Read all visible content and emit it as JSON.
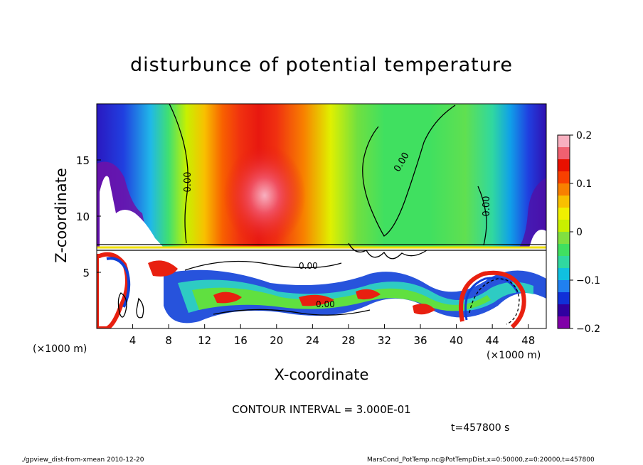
{
  "chart_data": {
    "type": "heatmap",
    "title": "disturbunce of potential temperature",
    "xlabel": "X-coordinate",
    "ylabel": "Z-coordinate",
    "x_unit": "(×1000 m)",
    "xlim": [
      0,
      50
    ],
    "ylim": [
      0,
      20
    ],
    "x_ticks": [
      4,
      8,
      12,
      16,
      20,
      24,
      28,
      32,
      36,
      40,
      44,
      48
    ],
    "y_ticks": [
      5,
      10,
      15
    ],
    "colorbar": {
      "range": [
        -0.2,
        0.2
      ],
      "ticks": [
        {
          "value": 0.2,
          "label": "0.2"
        },
        {
          "value": 0.1,
          "label": "0.1"
        },
        {
          "value": 0.0,
          "label": "0"
        },
        {
          "value": -0.1,
          "label": "−0.1"
        },
        {
          "value": -0.2,
          "label": "−0.2"
        }
      ],
      "colors": [
        "#8000a8",
        "#3000a0",
        "#1030d8",
        "#2080f0",
        "#10c0e0",
        "#30d8a0",
        "#40e060",
        "#80e040",
        "#c8f000",
        "#f0f000",
        "#f8c000",
        "#f88000",
        "#f84000",
        "#e81000",
        "#f06070",
        "#f8b0c0"
      ]
    },
    "contour_interval_text": "CONTOUR INTERVAL = 3.000E-01",
    "contour_labels": [
      "0.00",
      "0.00",
      "0.00",
      "0.00",
      "0.00"
    ],
    "time_text": "t=457800 s",
    "colors": {
      "upper_field_columns": [
        {
          "x": 0,
          "color": "#2a18c0"
        },
        {
          "x": 3,
          "color": "#2040e0"
        },
        {
          "x": 6,
          "color": "#20b8e8"
        },
        {
          "x": 8,
          "color": "#40e070"
        },
        {
          "x": 10,
          "color": "#c8f000"
        },
        {
          "x": 12,
          "color": "#f8c000"
        },
        {
          "x": 14,
          "color": "#f86000"
        },
        {
          "x": 16,
          "color": "#f03010"
        },
        {
          "x": 18,
          "color": "#e81810"
        },
        {
          "x": 20,
          "color": "#f03010"
        },
        {
          "x": 23,
          "color": "#f88000"
        },
        {
          "x": 26,
          "color": "#e0f000"
        },
        {
          "x": 29,
          "color": "#70e040"
        },
        {
          "x": 32,
          "color": "#40e060"
        },
        {
          "x": 37,
          "color": "#40e060"
        },
        {
          "x": 41,
          "color": "#60e050"
        },
        {
          "x": 44,
          "color": "#30d8a0"
        },
        {
          "x": 46,
          "color": "#10a0e8"
        },
        {
          "x": 48,
          "color": "#2040e0"
        },
        {
          "x": 50,
          "color": "#3010b0"
        }
      ]
    }
  },
  "footer": {
    "left": "./gpview_dist-from-xmean  2010-12-20",
    "right": "MarsCond_PotTemp.nc@PotTempDist,x=0:50000,z=0:20000,t=457800"
  }
}
